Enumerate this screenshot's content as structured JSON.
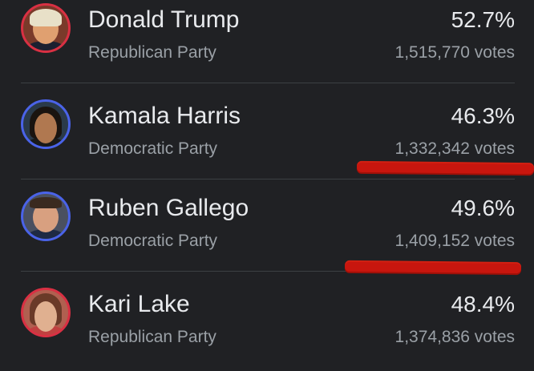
{
  "candidates": [
    {
      "name": "Donald Trump",
      "party": "Republican Party",
      "percent": "52.7%",
      "votes": "1,515,770 votes",
      "ring_color": "#d93043"
    },
    {
      "name": "Kamala Harris",
      "party": "Democratic Party",
      "percent": "46.3%",
      "votes": "1,332,342 votes",
      "ring_color": "#4a63e8"
    },
    {
      "name": "Ruben Gallego",
      "party": "Democratic Party",
      "percent": "49.6%",
      "votes": "1,409,152 votes",
      "ring_color": "#4a63e8"
    },
    {
      "name": "Kari Lake",
      "party": "Republican Party",
      "percent": "48.4%",
      "votes": "1,374,836 votes",
      "ring_color": "#d93043"
    }
  ],
  "annotation_color": "#c8160e"
}
